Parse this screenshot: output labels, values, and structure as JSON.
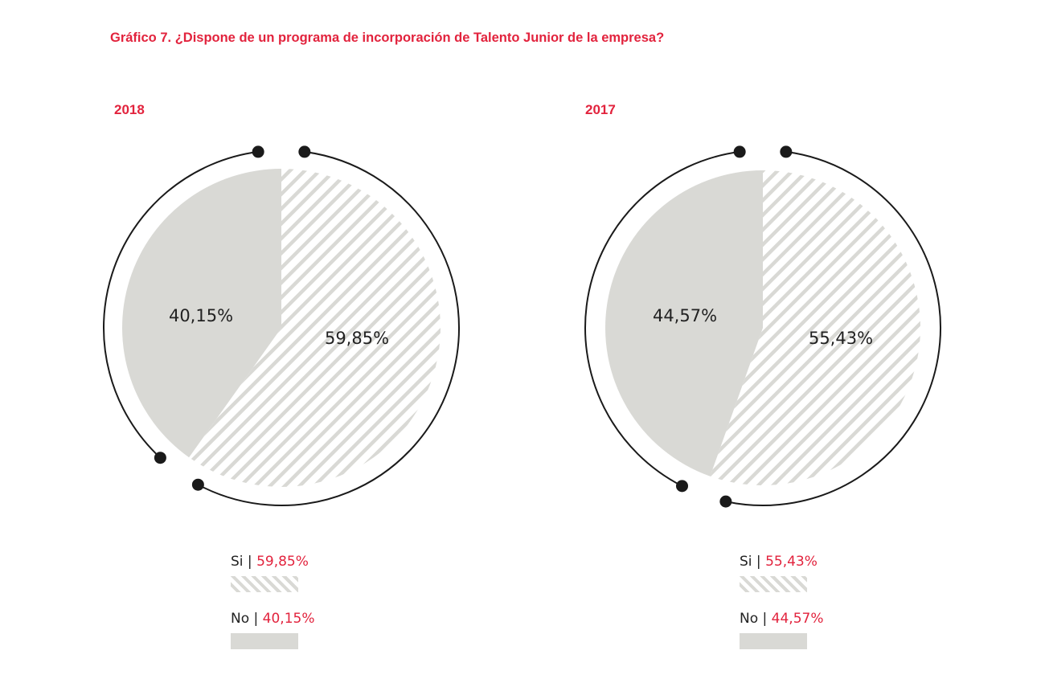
{
  "title": "Gráfico 7. ¿Dispone de un programa de incorporación de Talento Junior de la empresa?",
  "colors": {
    "accent": "#e2233d",
    "no": "#d9d9d5",
    "si_hatch": "#d9d9d5",
    "ring": "#1a1a1a"
  },
  "chart_data": [
    {
      "type": "pie",
      "title": "2018",
      "slices": [
        {
          "label": "Si",
          "value": 59.85,
          "display": "59,85%",
          "fill": "hatched"
        },
        {
          "label": "No",
          "value": 40.15,
          "display": "40,15%",
          "fill": "solid"
        }
      ]
    },
    {
      "type": "pie",
      "title": "2017",
      "slices": [
        {
          "label": "Si",
          "value": 55.43,
          "display": "55,43%",
          "fill": "hatched"
        },
        {
          "label": "No",
          "value": 44.57,
          "display": "44,57%",
          "fill": "solid"
        }
      ]
    }
  ],
  "legends": [
    {
      "si_label": "Si",
      "si_value": "59,85%",
      "no_label": "No",
      "no_value": "40,15%"
    },
    {
      "si_label": "Si",
      "si_value": "55,43%",
      "no_label": "No",
      "no_value": "44,57%"
    }
  ],
  "separator": "|"
}
